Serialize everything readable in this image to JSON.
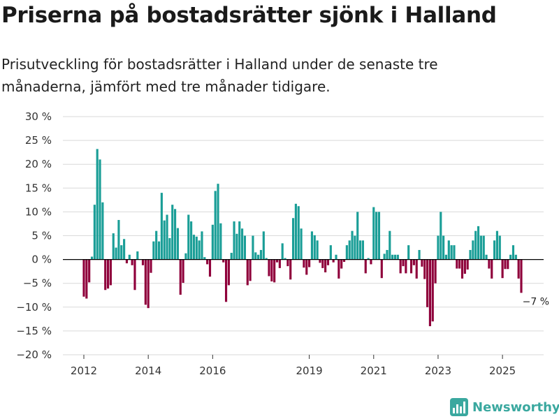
{
  "header": {
    "title": "Priserna på bostadsrätter sjönk i Halland",
    "subtitle": "Prisutveckling för bostadsrätter i Halland under de senaste tre månaderna, jämfört med tre månader tidigare."
  },
  "brand": {
    "name": "Newsworthy",
    "icon": "bar-chart-logo-icon"
  },
  "colors": {
    "positive": "#1a9e97",
    "negative": "#8f003b",
    "grid": "#d9d9d9",
    "zero_line": "#000000",
    "brand": "#3aa89f"
  },
  "chart_data": {
    "type": "bar",
    "title": "Priserna på bostadsrätter sjönk i Halland",
    "xlabel": "",
    "ylabel": "",
    "unit": "%",
    "ylim": [
      -20,
      30
    ],
    "yticks": [
      30,
      25,
      20,
      15,
      10,
      5,
      0,
      -5,
      -10,
      -15,
      -20
    ],
    "ytick_labels": [
      "30 %",
      "25 %",
      "20 %",
      "15 %",
      "10 %",
      "5 %",
      "0 %",
      "−5 %",
      "−10 %",
      "−15 %",
      "−20 %"
    ],
    "xticks": [
      {
        "label": "2012",
        "year": 2012
      },
      {
        "label": "2014",
        "year": 2014
      },
      {
        "label": "2016",
        "year": 2016
      },
      {
        "label": "2019",
        "year": 2019
      },
      {
        "label": "2021",
        "year": 2021
      },
      {
        "label": "2023",
        "year": 2023
      },
      {
        "label": "2025",
        "year": 2025
      }
    ],
    "x_start": "2012-01",
    "x_end": "2025-09",
    "series": [
      {
        "name": "Prisutveckling (%)",
        "values": [
          -7.8,
          -8.2,
          -4.8,
          0.6,
          11.5,
          23.2,
          21,
          12,
          -6.4,
          -6.1,
          -5.4,
          5.5,
          2.5,
          8.3,
          3,
          4.3,
          -0.8,
          1,
          -1.2,
          -6.4,
          1.7,
          0,
          -1.2,
          -9.5,
          -10.2,
          -2.8,
          3.8,
          6,
          3.8,
          14,
          8.2,
          9.4,
          4.5,
          11.5,
          10.6,
          6.6,
          -7.4,
          -4.9,
          1.3,
          9.4,
          8,
          5.2,
          4.8,
          4,
          5.9,
          0.5,
          -1,
          -3.6,
          7.3,
          14.4,
          15.9,
          7.6,
          -0.6,
          -8.9,
          -5.4,
          1.4,
          8,
          5.4,
          8,
          6.5,
          5,
          -5.4,
          -4.5,
          5,
          1.5,
          1,
          2,
          5.9,
          0.3,
          -3.5,
          -4.6,
          -4.8,
          -0.6,
          -1.8,
          3.4,
          0.3,
          -1.4,
          -4.2,
          8.7,
          11.7,
          11.2,
          6.5,
          -1.7,
          -3.2,
          -1.6,
          5.9,
          5.1,
          4,
          -0.7,
          -1.8,
          -2.7,
          -1.2,
          3,
          -0.6,
          1,
          -4,
          -1.9,
          -0.5,
          3,
          4,
          6,
          5,
          10,
          4,
          4,
          -2.9,
          0.3,
          -1,
          11,
          10,
          10,
          -3.9,
          1.2,
          2,
          6,
          1,
          1,
          1,
          -2.9,
          -1.4,
          -2.9,
          3,
          -2.9,
          -1.2,
          -4,
          2,
          -1.5,
          -4.1,
          -10,
          -14,
          -13,
          -5,
          5,
          10,
          5,
          1,
          4,
          3,
          3,
          -1.9,
          -1.9,
          -4,
          -3,
          -2.1,
          2,
          4,
          6,
          7,
          5,
          5,
          1,
          -1.9,
          -4,
          4,
          6,
          5,
          -3.9,
          -2,
          -2,
          1,
          3,
          1,
          -4,
          -7
        ]
      }
    ],
    "annotations": [
      {
        "text": "−7 %",
        "x": "2025-09",
        "y": -7
      }
    ]
  }
}
